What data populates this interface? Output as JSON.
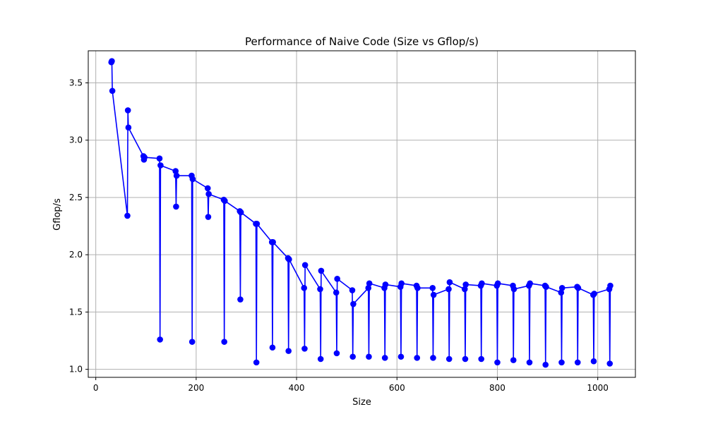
{
  "chart_data": {
    "type": "line",
    "title": "Performance of Naive Code (Size vs Gflop/s)",
    "xlabel": "Size",
    "ylabel": "Gflop/s",
    "xlim": [
      -15,
      1075
    ],
    "ylim": [
      0.93,
      3.78
    ],
    "grid": true,
    "color": "#0000ff",
    "xticks": [
      0,
      200,
      400,
      600,
      800,
      1000
    ],
    "yticks": [
      1.0,
      1.5,
      2.0,
      2.5,
      3.0,
      3.5
    ],
    "series": [
      {
        "x": [
          31,
          32,
          33,
          63,
          64,
          65,
          95,
          96,
          97,
          127,
          128,
          129,
          159,
          160,
          161,
          191,
          192,
          193,
          223,
          224,
          225,
          255,
          256,
          257,
          287,
          288,
          289,
          319,
          320,
          321,
          351,
          352,
          353,
          383,
          384,
          385,
          415,
          416,
          417,
          447,
          448,
          449,
          479,
          480,
          481,
          511,
          512,
          513,
          543,
          544,
          545,
          575,
          576,
          577,
          607,
          608,
          609,
          639,
          640,
          641,
          671,
          672,
          673,
          703,
          704,
          705,
          735,
          736,
          737,
          767,
          768,
          769,
          799,
          800,
          801,
          831,
          832,
          833,
          863,
          864,
          865,
          895,
          896,
          897,
          927,
          928,
          929,
          959,
          960,
          961,
          991,
          992,
          993,
          1023,
          1024,
          1025
        ],
        "y": [
          3.68,
          3.69,
          3.43,
          2.34,
          3.26,
          3.11,
          2.86,
          2.83,
          2.85,
          2.84,
          1.26,
          2.78,
          2.73,
          2.42,
          2.69,
          2.69,
          1.24,
          2.66,
          2.58,
          2.33,
          2.53,
          2.48,
          1.24,
          2.47,
          2.38,
          1.61,
          2.37,
          2.27,
          1.06,
          2.27,
          2.11,
          1.19,
          2.11,
          1.97,
          1.16,
          1.96,
          1.71,
          1.18,
          1.91,
          1.7,
          1.09,
          1.86,
          1.67,
          1.14,
          1.79,
          1.69,
          1.11,
          1.57,
          1.71,
          1.11,
          1.75,
          1.71,
          1.1,
          1.74,
          1.72,
          1.11,
          1.75,
          1.73,
          1.1,
          1.71,
          1.71,
          1.1,
          1.65,
          1.7,
          1.09,
          1.76,
          1.7,
          1.09,
          1.74,
          1.73,
          1.09,
          1.75,
          1.73,
          1.06,
          1.75,
          1.73,
          1.08,
          1.7,
          1.73,
          1.06,
          1.75,
          1.73,
          1.04,
          1.72,
          1.67,
          1.06,
          1.71,
          1.72,
          1.06,
          1.71,
          1.65,
          1.07,
          1.66,
          1.7,
          1.05,
          1.73
        ]
      }
    ]
  }
}
